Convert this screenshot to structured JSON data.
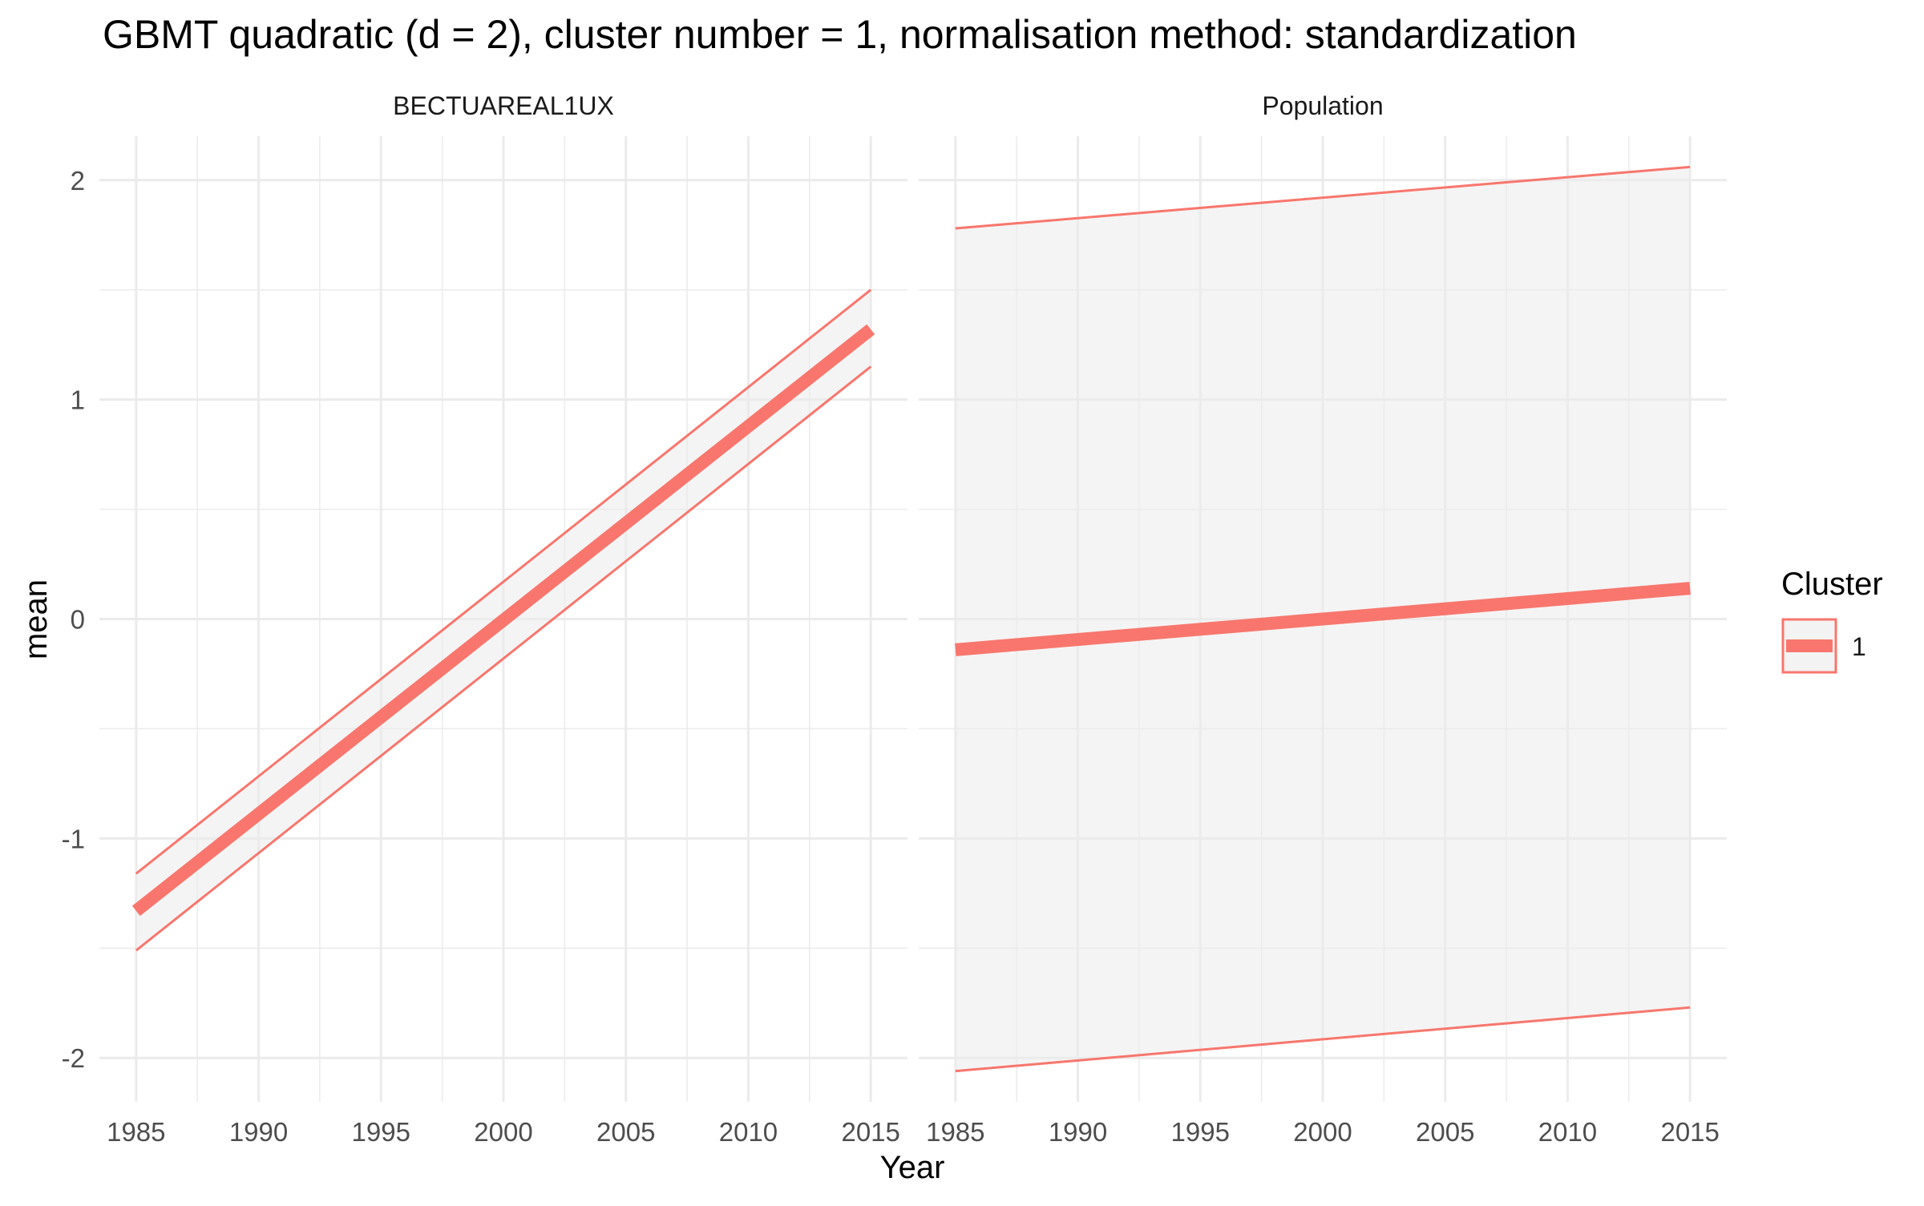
{
  "chart_data": {
    "type": "line",
    "title": "GBMT quadratic (d = 2), cluster number = 1, normalisation method: standardization",
    "xlabel": "Year",
    "ylabel": "mean",
    "x_ticks": [
      1985,
      1990,
      1995,
      2000,
      2005,
      2010,
      2015
    ],
    "y_ticks": [
      -2,
      -1,
      0,
      1,
      2
    ],
    "xlim": [
      1983.5,
      2016.5
    ],
    "ylim": [
      -2.2,
      2.2
    ],
    "grid": true,
    "legend": {
      "title": "Cluster",
      "position": "right",
      "entries": [
        {
          "label": "1",
          "color": "#F8766D"
        }
      ]
    },
    "colors": {
      "line": "#F8766D",
      "ribbon": "#EBEBEB",
      "grid": "#EBEBEB"
    },
    "panels": [
      {
        "strip_label": "BECTUAREAL1UX",
        "series": [
          {
            "name": "1",
            "x": [
              1985,
              2015
            ],
            "mean": [
              -1.33,
              1.32
            ],
            "lower": [
              -1.51,
              1.15
            ],
            "upper": [
              -1.16,
              1.5
            ]
          }
        ]
      },
      {
        "strip_label": "Population",
        "series": [
          {
            "name": "1",
            "x": [
              1985,
              2015
            ],
            "mean": [
              -0.14,
              0.14
            ],
            "lower": [
              -2.06,
              -1.77
            ],
            "upper": [
              1.78,
              2.06
            ]
          }
        ]
      }
    ]
  }
}
